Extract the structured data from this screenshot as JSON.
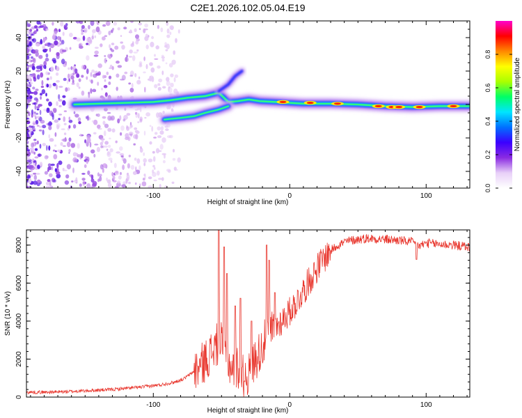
{
  "figure_title": "C2E1.2026.102.05.04.E19",
  "chart_data": [
    {
      "type": "heatmap",
      "xlabel": "Height of straight line (km)",
      "ylabel": "Frequency (Hz)",
      "xlim": [
        -193,
        132
      ],
      "ylim": [
        -50,
        50
      ],
      "xticks": [
        -100,
        0,
        100
      ],
      "xtick_labels": [
        "-100",
        "0",
        "100"
      ],
      "yticks": [
        -40,
        -20,
        0,
        20,
        40
      ],
      "ytick_labels": [
        "-40",
        "-20",
        "0",
        "20",
        "40"
      ],
      "colorbar": {
        "label": "Normalized spectral amplitude",
        "range": [
          0,
          1
        ],
        "ticks": [
          0.0,
          0.2,
          0.4,
          0.6,
          0.8
        ],
        "tick_labels": [
          "0.0",
          "0.2",
          "0.4",
          "0.6",
          "0.8"
        ],
        "colormap": [
          "#ffffff",
          "#e8d0f8",
          "#8a2be2",
          "#3b00ff",
          "#0070ff",
          "#00e5ff",
          "#00ff66",
          "#aaff00",
          "#ffff00",
          "#ff8800",
          "#ff0000",
          "#ff00cc"
        ]
      },
      "main_ridge": [
        [
          -158,
          0
        ],
        [
          -140,
          0.5
        ],
        [
          -120,
          1
        ],
        [
          -100,
          1.5
        ],
        [
          -88,
          2.5
        ],
        [
          -75,
          4
        ],
        [
          -62,
          5
        ],
        [
          -52,
          7
        ],
        [
          -45,
          1.5
        ],
        [
          -38,
          2
        ],
        [
          -30,
          3
        ],
        [
          -22,
          2
        ],
        [
          -10,
          1.5
        ],
        [
          0,
          1
        ],
        [
          10,
          0.5
        ],
        [
          30,
          0.5
        ],
        [
          50,
          0
        ],
        [
          70,
          -1
        ],
        [
          90,
          -1.5
        ],
        [
          110,
          -1
        ],
        [
          132,
          -1
        ]
      ],
      "lower_branch": [
        [
          -92,
          -9
        ],
        [
          -80,
          -8
        ],
        [
          -70,
          -7
        ],
        [
          -62,
          -5
        ],
        [
          -52,
          -3
        ],
        [
          -45,
          -1
        ]
      ],
      "upper_branch": [
        [
          -52,
          8
        ],
        [
          -45,
          12
        ],
        [
          -40,
          17
        ],
        [
          -35,
          20
        ]
      ],
      "peak_regions": [
        [
          -5,
          1.5
        ],
        [
          15,
          1
        ],
        [
          35,
          0.5
        ],
        [
          65,
          -1
        ],
        [
          75,
          -1.5
        ],
        [
          80,
          -1.5
        ],
        [
          95,
          -1.5
        ],
        [
          120,
          -1
        ]
      ]
    },
    {
      "type": "line",
      "xlabel": "Height of straight line (km)",
      "ylabel": "SNR (10 * v/v)",
      "xlim": [
        -193,
        132
      ],
      "ylim": [
        0,
        8800
      ],
      "xticks": [
        -100,
        0,
        100
      ],
      "xtick_labels": [
        "-100",
        "0",
        "100"
      ],
      "yticks": [
        0,
        2000,
        4000,
        6000,
        8000
      ],
      "ytick_labels": [
        "0",
        "2000",
        "4000",
        "6000",
        "8000"
      ],
      "series": [
        {
          "name": "SNR",
          "color": "#e8342b",
          "x": [
            -193,
            -170,
            -150,
            -130,
            -110,
            -95,
            -85,
            -78,
            -72,
            -66,
            -60,
            -56,
            -52,
            -50,
            -48,
            -45,
            -42,
            -38,
            -34,
            -30,
            -26,
            -22,
            -18,
            -14,
            -10,
            -5,
            0,
            5,
            10,
            15,
            20,
            25,
            30,
            35,
            40,
            45,
            50,
            55,
            60,
            70,
            80,
            90,
            95,
            100,
            110,
            120,
            132
          ],
          "y": [
            250,
            270,
            330,
            400,
            520,
            640,
            780,
            950,
            1250,
            1600,
            2100,
            2500,
            2900,
            2800,
            2300,
            1900,
            1500,
            1600,
            1100,
            1200,
            1900,
            2400,
            3000,
            3400,
            3700,
            4100,
            4500,
            5000,
            5600,
            6200,
            6800,
            7300,
            7700,
            8000,
            8150,
            8250,
            8300,
            8350,
            8350,
            8300,
            8250,
            8150,
            7950,
            8100,
            8050,
            8000,
            7900
          ],
          "spikes": [
            [
              -52,
              8800
            ],
            [
              -48,
              7900
            ],
            [
              -46,
              6500
            ],
            [
              -40,
              4800
            ],
            [
              -36,
              5200
            ],
            [
              -28,
              4000
            ],
            [
              -17,
              8000
            ],
            [
              -15,
              7200
            ],
            [
              -11,
              5500
            ],
            [
              93,
              7250
            ]
          ]
        }
      ]
    }
  ]
}
